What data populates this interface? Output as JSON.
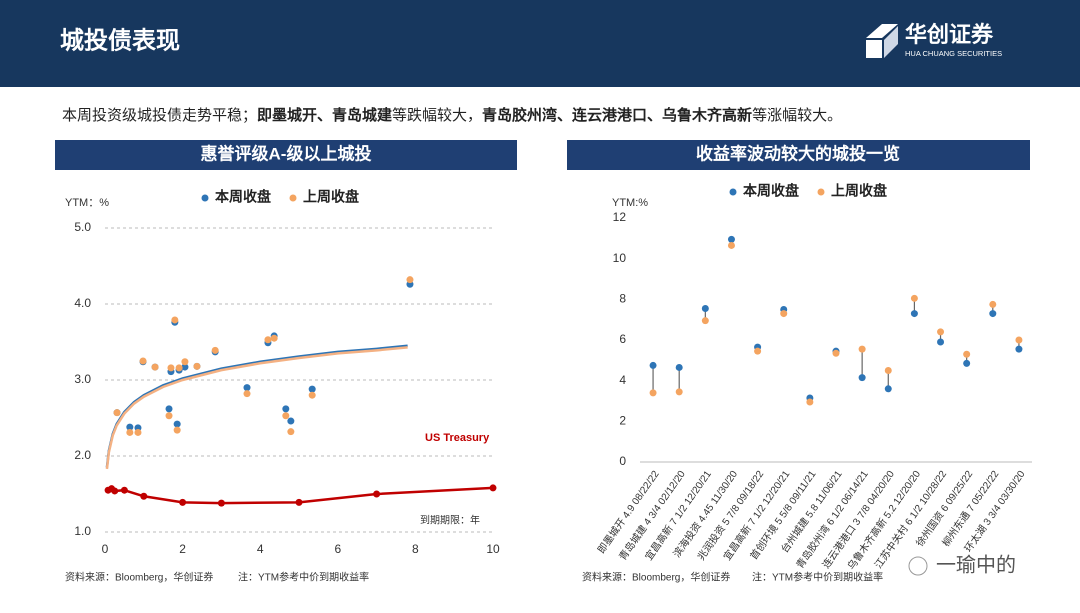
{
  "header": {
    "title": "城投债表现",
    "logo": "华创证券",
    "logo_sub": "HUA CHUANG SECURITIES"
  },
  "intro": [
    {
      "text": "本周投资级城投债走势平稳；",
      "bold": false
    },
    {
      "text": "即墨城开、青岛城建",
      "bold": true
    },
    {
      "text": "等跌幅较大，",
      "bold": false
    },
    {
      "text": "青岛胶州湾、连云港港口、乌鲁木齐高新",
      "bold": true
    },
    {
      "text": "等涨幅较大。",
      "bold": false
    }
  ],
  "chart_data": [
    {
      "type": "scatter",
      "title": "惠誉评级A-级以上城投",
      "ylabel": "YTM：%",
      "xlabel": "到期期限：年",
      "xlim": [
        0,
        10
      ],
      "ylim": [
        1,
        5
      ],
      "xticks": [
        0,
        2,
        4,
        6,
        8,
        10
      ],
      "yticks": [
        {
          "value": 1,
          "label": "1.0"
        },
        {
          "value": 2,
          "label": "2.0"
        },
        {
          "value": 3,
          "label": "3.0"
        },
        {
          "value": 4,
          "label": "4.0"
        },
        {
          "value": 5,
          "label": "5.0"
        }
      ],
      "grid": true,
      "series": [
        {
          "name": "本周收盘",
          "color": "#2e75b6",
          "x": [
            0.31,
            0.64,
            0.85,
            0.98,
            1.29,
            1.65,
            1.7,
            1.8,
            1.86,
            1.91,
            2.06,
            2.37,
            2.84,
            3.66,
            4.2,
            4.36,
            4.66,
            4.79,
            5.34,
            7.86
          ],
          "values": [
            2.57,
            2.38,
            2.37,
            3.24,
            3.17,
            2.62,
            3.11,
            3.76,
            2.42,
            3.13,
            3.17,
            3.18,
            3.37,
            2.9,
            3.49,
            3.58,
            2.62,
            2.46,
            2.88,
            4.26
          ]
        },
        {
          "name": "上周收盘",
          "color": "#f4a460",
          "x": [
            0.31,
            0.64,
            0.85,
            0.98,
            1.29,
            1.65,
            1.7,
            1.8,
            1.86,
            1.91,
            2.06,
            2.37,
            2.84,
            3.66,
            4.2,
            4.36,
            4.66,
            4.79,
            5.34,
            7.86
          ],
          "values": [
            2.57,
            2.31,
            2.31,
            3.25,
            3.17,
            2.53,
            3.16,
            3.79,
            2.34,
            3.16,
            3.24,
            3.18,
            3.39,
            2.82,
            3.53,
            3.55,
            2.53,
            2.32,
            2.8,
            4.32
          ]
        },
        {
          "type": "line",
          "color": "#2e75b6",
          "x": [
            0.05,
            0.1,
            0.2,
            0.3,
            0.5,
            0.75,
            1,
            1.5,
            2,
            3,
            4,
            5,
            6,
            7,
            7.8
          ],
          "values": [
            1.85,
            2.07,
            2.29,
            2.42,
            2.58,
            2.71,
            2.8,
            2.93,
            3.02,
            3.15,
            3.24,
            3.31,
            3.37,
            3.41,
            3.45
          ]
        },
        {
          "type": "line",
          "color": "#f4b183",
          "x": [
            0.05,
            0.1,
            0.2,
            0.3,
            0.5,
            0.75,
            1,
            1.5,
            2,
            3,
            4,
            5,
            6,
            7,
            7.8
          ],
          "values": [
            1.83,
            2.05,
            2.27,
            2.4,
            2.56,
            2.69,
            2.78,
            2.91,
            3,
            3.13,
            3.22,
            3.29,
            3.35,
            3.39,
            3.43
          ]
        },
        {
          "type": "line",
          "name": "US Treasury",
          "color": "#c00000",
          "markers": true,
          "x": [
            0.08,
            0.17,
            0.25,
            0.5,
            1,
            2,
            3,
            5,
            7,
            10
          ],
          "values": [
            1.55,
            1.57,
            1.54,
            1.55,
            1.47,
            1.39,
            1.38,
            1.39,
            1.5,
            1.58
          ]
        }
      ],
      "legend": "top"
    },
    {
      "type": "dot-range",
      "title": "收益率波动较大的城投一览",
      "ylabel": "YTM:%",
      "categories": [
        "即墨城开 4.9 08/22/22",
        "青岛城建 4 3/4 02/12/20",
        "宜昌高新 7 1/2 12/20/21",
        "滨海投资 4.45 11/30/20",
        "兆润投资 5 7/8 09/18/22",
        "宜昌高新 7 1/2 12/20/21",
        "首创环境 5 5/8 09/11/21",
        "台州城建 5.8 11/06/21",
        "青岛胶州湾 6 1/2 06/14/21",
        "连云港港口 3 7/8 04/20/20",
        "乌鲁木齐高新 5.2 12/20/20",
        "江苏中关村 6 1/2 10/28/22",
        "徐州国资 6 09/25/22",
        "柳州东通 7 05/22/22",
        "环太湖 3 3/4 03/30/20"
      ],
      "ylim": [
        0,
        12
      ],
      "yticks": [
        0,
        2,
        4,
        6,
        8,
        10,
        12
      ],
      "grid": false,
      "series": [
        {
          "name": "本周收盘",
          "color": "#2e75b6",
          "values": [
            4.75,
            4.65,
            7.55,
            10.95,
            5.65,
            7.5,
            3.15,
            5.45,
            4.15,
            3.6,
            7.3,
            5.9,
            4.85,
            7.3,
            5.55
          ]
        },
        {
          "name": "上周收盘",
          "color": "#f4a460",
          "values": [
            3.4,
            3.45,
            6.95,
            10.65,
            5.45,
            7.3,
            2.95,
            5.35,
            5.55,
            4.5,
            8.05,
            6.4,
            5.3,
            7.75,
            6.0
          ]
        }
      ],
      "legend": "top"
    }
  ],
  "footnotes": [
    {
      "source": "资料来源：Bloomberg，华创证券",
      "note": "注：YTM参考中价到期收益率"
    },
    {
      "source": "资料来源：Bloomberg，华创证券",
      "note": "注：YTM参考中价到期收益率"
    }
  ],
  "watermark": "一瑜中的"
}
